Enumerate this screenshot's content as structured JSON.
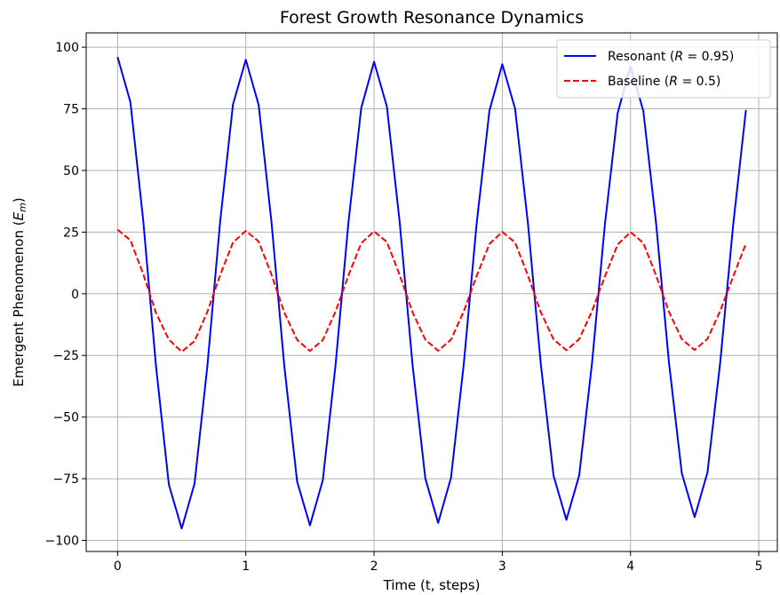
{
  "chart_data": {
    "type": "line",
    "title": "Forest Growth Resonance Dynamics",
    "xlabel": "Time (t, steps)",
    "ylabel_parts": [
      "Emergent Phenomenon (",
      "E",
      "m",
      ")"
    ],
    "xlim": [
      -0.245,
      5.145
    ],
    "ylim": [
      -104.5,
      105.8
    ],
    "xticks": [
      0,
      1,
      2,
      3,
      4,
      5
    ],
    "xtick_labels": [
      "0",
      "1",
      "2",
      "3",
      "4",
      "5"
    ],
    "yticks": [
      -100,
      -75,
      -50,
      -25,
      0,
      25,
      50,
      75,
      100
    ],
    "ytick_labels": [
      "−100",
      "−75",
      "−50",
      "−25",
      "0",
      "25",
      "50",
      "75",
      "100"
    ],
    "grid": true,
    "legend_position": "top-right",
    "x": [
      0.0,
      0.1,
      0.2,
      0.3,
      0.4,
      0.5,
      0.6,
      0.7,
      0.8,
      0.9,
      1.0,
      1.1,
      1.2,
      1.3,
      1.4,
      1.5,
      1.6,
      1.7,
      1.8,
      1.9,
      2.0,
      2.1,
      2.2,
      2.3,
      2.4,
      2.5,
      2.6,
      2.7,
      2.8,
      2.9,
      3.0,
      3.1,
      3.2,
      3.3,
      3.4,
      3.5,
      3.6,
      3.7,
      3.8,
      3.9,
      4.0,
      4.1,
      4.2,
      4.3,
      4.4,
      4.5,
      4.6,
      4.7,
      4.8,
      4.9
    ],
    "series": [
      {
        "legend_parts": [
          "Resonant (",
          "R",
          " = 0.95)"
        ],
        "color": "#0000ff",
        "linestyle": "solid",
        "values": [
          96.0,
          77.7,
          29.7,
          -29.6,
          -77.4,
          -95.2,
          -77.0,
          -29.4,
          29.4,
          76.8,
          94.9,
          76.6,
          29.2,
          -29.2,
          -76.1,
          -93.9,
          -75.7,
          -28.8,
          28.8,
          75.3,
          94.1,
          75.9,
          29.0,
          -28.7,
          -74.9,
          -92.9,
          -74.6,
          -28.4,
          28.4,
          74.3,
          93.1,
          75.0,
          28.6,
          -28.3,
          -73.8,
          -91.7,
          -73.6,
          -28.0,
          28.0,
          73.3,
          92.2,
          74.1,
          28.3,
          -27.9,
          -72.8,
          -90.6,
          -72.5,
          -27.6,
          27.6,
          74.5
        ]
      },
      {
        "legend_parts": [
          "Baseline (",
          "R",
          " = 0.5)"
        ],
        "color": "#ff0000",
        "linestyle": "dashed",
        "values": [
          26.0,
          21.7,
          8.0,
          -7.8,
          -18.6,
          -23.5,
          -19.2,
          -7.3,
          7.6,
          20.8,
          25.5,
          21.2,
          7.8,
          -7.6,
          -18.7,
          -23.2,
          -18.8,
          -7.2,
          7.4,
          20.5,
          25.3,
          21.0,
          7.6,
          -7.5,
          -18.6,
          -23.1,
          -18.6,
          -7.1,
          7.2,
          20.2,
          25.1,
          20.8,
          7.4,
          -7.4,
          -18.5,
          -22.9,
          -18.4,
          -7.0,
          7.0,
          20.0,
          25.0,
          20.6,
          7.3,
          -7.3,
          -18.4,
          -22.8,
          -18.3,
          -6.9,
          6.9,
          20.3
        ]
      }
    ]
  }
}
